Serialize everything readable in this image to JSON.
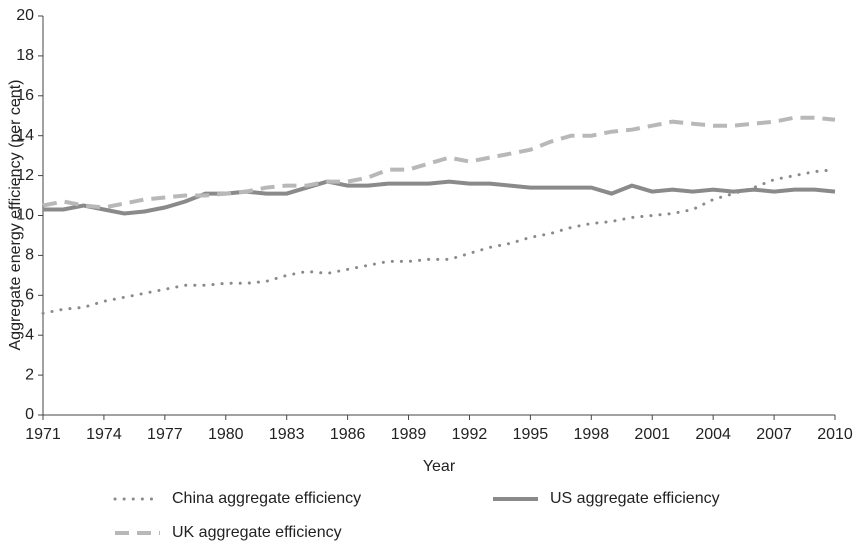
{
  "chart_data": {
    "type": "line",
    "x_label": "Year",
    "y_label": "Aggregate energy efficiency (per cent)",
    "x": [
      1971,
      1972,
      1973,
      1974,
      1975,
      1976,
      1977,
      1978,
      1979,
      1980,
      1981,
      1982,
      1983,
      1984,
      1985,
      1986,
      1987,
      1988,
      1989,
      1990,
      1991,
      1992,
      1993,
      1994,
      1995,
      1996,
      1997,
      1998,
      1999,
      2000,
      2001,
      2002,
      2003,
      2004,
      2005,
      2006,
      2007,
      2008,
      2009,
      2010
    ],
    "series": [
      {
        "name": "China aggregate efficiency",
        "color": "#8a8a8a",
        "style": "dotted",
        "values": [
          5.1,
          5.3,
          5.4,
          5.7,
          5.9,
          6.1,
          6.3,
          6.5,
          6.5,
          6.6,
          6.6,
          6.7,
          7.0,
          7.2,
          7.1,
          7.3,
          7.5,
          7.7,
          7.7,
          7.8,
          7.8,
          8.1,
          8.4,
          8.6,
          8.9,
          9.1,
          9.4,
          9.6,
          9.7,
          9.9,
          10.0,
          10.1,
          10.3,
          10.8,
          11.1,
          11.4,
          11.8,
          12.0,
          12.2,
          12.3
        ]
      },
      {
        "name": "US aggregate efficiency",
        "color": "#8a8a8a",
        "style": "solid",
        "values": [
          10.3,
          10.3,
          10.5,
          10.3,
          10.1,
          10.2,
          10.4,
          10.7,
          11.1,
          11.1,
          11.2,
          11.1,
          11.1,
          11.4,
          11.7,
          11.5,
          11.5,
          11.6,
          11.6,
          11.6,
          11.7,
          11.6,
          11.6,
          11.5,
          11.4,
          11.4,
          11.4,
          11.4,
          11.1,
          11.5,
          11.2,
          11.3,
          11.2,
          11.3,
          11.2,
          11.3,
          11.2,
          11.3,
          11.3,
          11.2
        ]
      },
      {
        "name": "UK aggregate efficiency",
        "color": "#b8b8b8",
        "style": "dashed",
        "values": [
          10.5,
          10.7,
          10.5,
          10.4,
          10.6,
          10.8,
          10.9,
          11.0,
          11.0,
          11.1,
          11.2,
          11.4,
          11.5,
          11.5,
          11.7,
          11.7,
          11.9,
          12.3,
          12.3,
          12.6,
          12.9,
          12.7,
          12.9,
          13.1,
          13.3,
          13.7,
          14.0,
          14.0,
          14.2,
          14.3,
          14.5,
          14.7,
          14.6,
          14.5,
          14.5,
          14.6,
          14.7,
          14.9,
          14.9,
          14.8
        ]
      }
    ],
    "xlim": [
      1971,
      2010
    ],
    "xticks": [
      1971,
      1974,
      1977,
      1980,
      1983,
      1986,
      1989,
      1992,
      1995,
      1998,
      2001,
      2004,
      2007,
      2010
    ],
    "ylim": [
      0,
      20
    ],
    "yticks": [
      0,
      2,
      4,
      6,
      8,
      10,
      12,
      14,
      16,
      18,
      20
    ],
    "grid": false
  }
}
